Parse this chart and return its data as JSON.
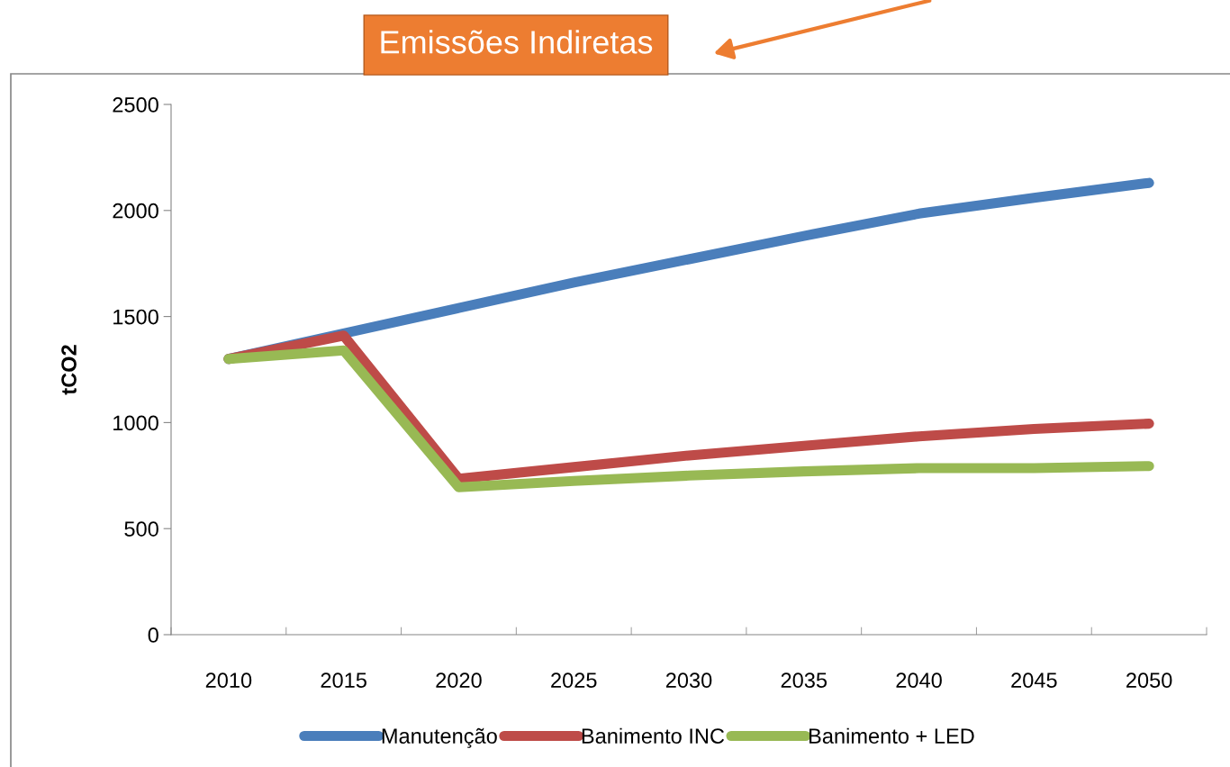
{
  "chart_data": {
    "type": "line",
    "title": "Emissões Indiretas",
    "ylabel": "tCO2",
    "categories": [
      "2010",
      "2015",
      "2020",
      "2025",
      "2030",
      "2035",
      "2040",
      "2045",
      "2050"
    ],
    "series": [
      {
        "name": "Manutenção",
        "color": "#4a7ebb",
        "values": [
          1300,
          1420,
          1540,
          1660,
          1770,
          1880,
          1985,
          2060,
          2130
        ]
      },
      {
        "name": "Banimento INC",
        "color": "#be4b48",
        "values": [
          1300,
          1410,
          735,
          790,
          845,
          890,
          935,
          970,
          995
        ]
      },
      {
        "name": "Banimento + LED",
        "color": "#98b954",
        "values": [
          1300,
          1340,
          695,
          725,
          750,
          770,
          785,
          785,
          795
        ]
      }
    ],
    "ylim": [
      0,
      2500
    ],
    "yticks": [
      0,
      500,
      1000,
      1500,
      2000,
      2500
    ],
    "grid": false,
    "legend": "bottom",
    "marker": "none",
    "line_style": "solid"
  }
}
